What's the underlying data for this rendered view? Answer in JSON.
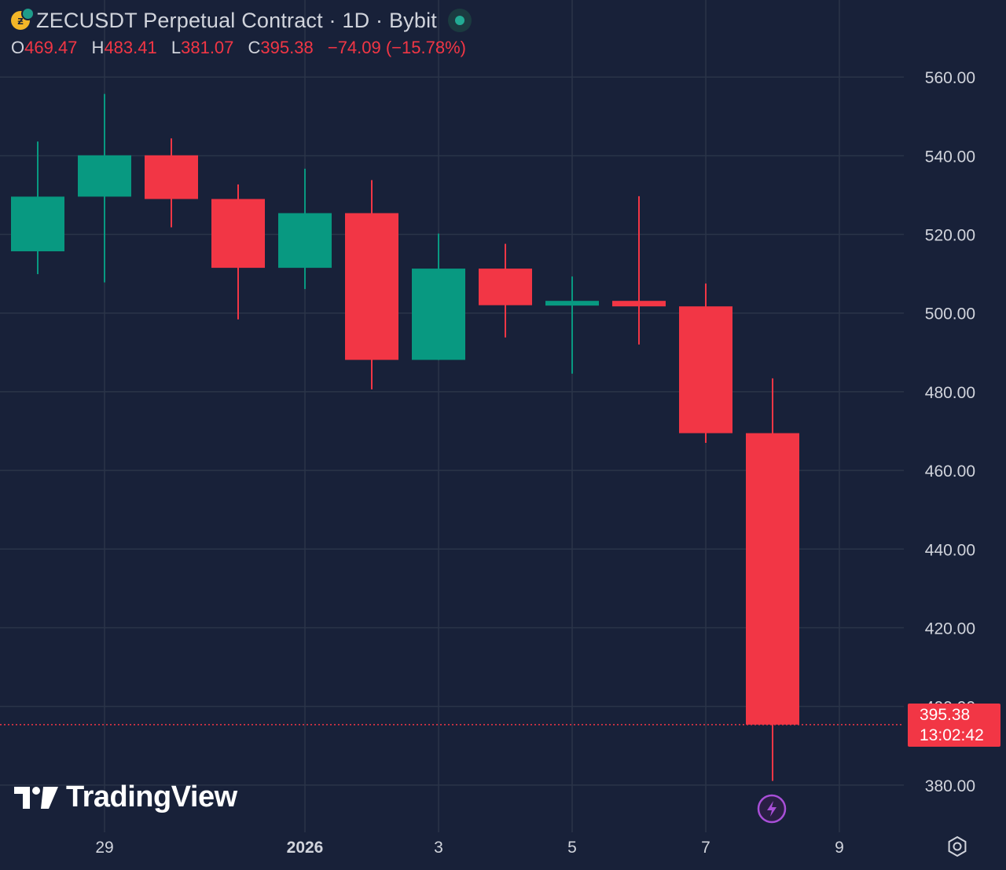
{
  "header": {
    "title": "ZECUSDT Perpetual Contract · 1D · Bybit",
    "coin_icon": "zcash-coin-icon",
    "status_icon": "market-open-dot-icon",
    "ohlc": {
      "open_label": "O",
      "open": "469.47",
      "high_label": "H",
      "high": "483.41",
      "low_label": "L",
      "low": "381.07",
      "close_label": "C",
      "close": "395.38",
      "change": "−74.09 (−15.78%)"
    }
  },
  "price_tag": {
    "price": "395.38",
    "countdown": "13:02:42"
  },
  "watermark": {
    "text": "TradingView"
  },
  "icons": {
    "settings": "settings-gear-icon",
    "event": "lightning-bolt-icon"
  },
  "colors": {
    "background": "#182139",
    "up": "#089981",
    "down": "#f23645",
    "text": "#d1d4dc",
    "grid": "#2a3449"
  },
  "chart_data": {
    "type": "candlestick",
    "title": "ZECUSDT Perpetual Contract · 1D · Bybit",
    "ylim": [
      368,
      572
    ],
    "grid": true,
    "y_ticks": [
      "560.00",
      "540.00",
      "520.00",
      "500.00",
      "480.00",
      "460.00",
      "440.00",
      "420.00",
      "400.00",
      "380.00"
    ],
    "x_ticks": [
      {
        "label": "29",
        "day": 1,
        "bold": false
      },
      {
        "label": "2026",
        "day": 4,
        "bold": true
      },
      {
        "label": "3",
        "day": 6,
        "bold": false
      },
      {
        "label": "5",
        "day": 8,
        "bold": false
      },
      {
        "label": "7",
        "day": 10,
        "bold": false
      },
      {
        "label": "9",
        "day": 12,
        "bold": false
      }
    ],
    "candles": [
      {
        "date": "2025-12-28",
        "open": 515.7,
        "high": 543.6,
        "low": 509.9,
        "close": 529.6
      },
      {
        "date": "2025-12-29",
        "open": 529.6,
        "high": 555.7,
        "low": 507.8,
        "close": 540.1
      },
      {
        "date": "2025-12-30",
        "open": 540.1,
        "high": 544.4,
        "low": 521.8,
        "close": 529.0
      },
      {
        "date": "2025-12-31",
        "open": 529.0,
        "high": 532.7,
        "low": 498.4,
        "close": 511.5
      },
      {
        "date": "2026-01-01",
        "open": 511.5,
        "high": 536.7,
        "low": 506.1,
        "close": 525.4
      },
      {
        "date": "2026-01-02",
        "open": 525.4,
        "high": 533.8,
        "low": 480.6,
        "close": 488.1
      },
      {
        "date": "2026-01-03",
        "open": 488.1,
        "high": 520.2,
        "low": 488.1,
        "close": 511.3
      },
      {
        "date": "2026-01-04",
        "open": 511.3,
        "high": 517.6,
        "low": 493.8,
        "close": 502.0
      },
      {
        "date": "2026-01-05",
        "open": 502.0,
        "high": 509.3,
        "low": 484.6,
        "close": 503.1
      },
      {
        "date": "2026-01-06",
        "open": 503.1,
        "high": 529.7,
        "low": 492.0,
        "close": 501.7
      },
      {
        "date": "2026-01-07",
        "open": 501.7,
        "high": 507.5,
        "low": 467.0,
        "close": 469.47
      },
      {
        "date": "2026-01-08",
        "open": 469.47,
        "high": 483.41,
        "low": 381.07,
        "close": 395.38
      }
    ],
    "last_price": 395.38
  }
}
